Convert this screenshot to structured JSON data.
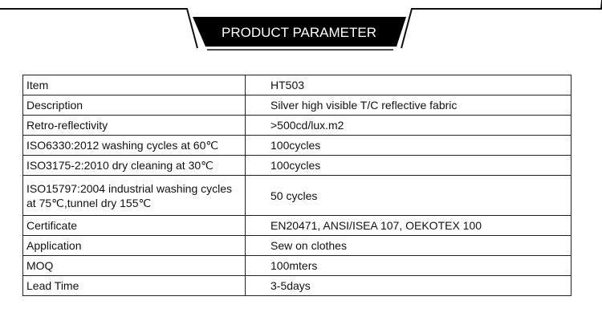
{
  "header": {
    "title": "PRODUCT PARAMETER"
  },
  "table": {
    "rows": [
      {
        "label": "Item",
        "value": "HT503"
      },
      {
        "label": "Description",
        "value": "Silver high visible T/C reflective fabric"
      },
      {
        "label": "Retro-reflectivity",
        "value": ">500cd/lux.m2"
      },
      {
        "label": "ISO6330:2012 washing cycles at 60℃",
        "value": "100cycles"
      },
      {
        "label": "ISO3175-2:2010 dry cleaning at 30℃",
        "value": "100cycles"
      },
      {
        "label": "ISO15797:2004 industrial washing cycles at 75℃,tunnel dry 155℃",
        "value": "50 cycles"
      },
      {
        "label": "Certificate",
        "value": "EN20471, ANSI/ISEA 107, OEKOTEX 100"
      },
      {
        "label": "Application",
        "value": "Sew on clothes"
      },
      {
        "label": "MOQ",
        "value": "100mters"
      },
      {
        "label": "Lead Time",
        "value": "3-5days"
      }
    ]
  }
}
